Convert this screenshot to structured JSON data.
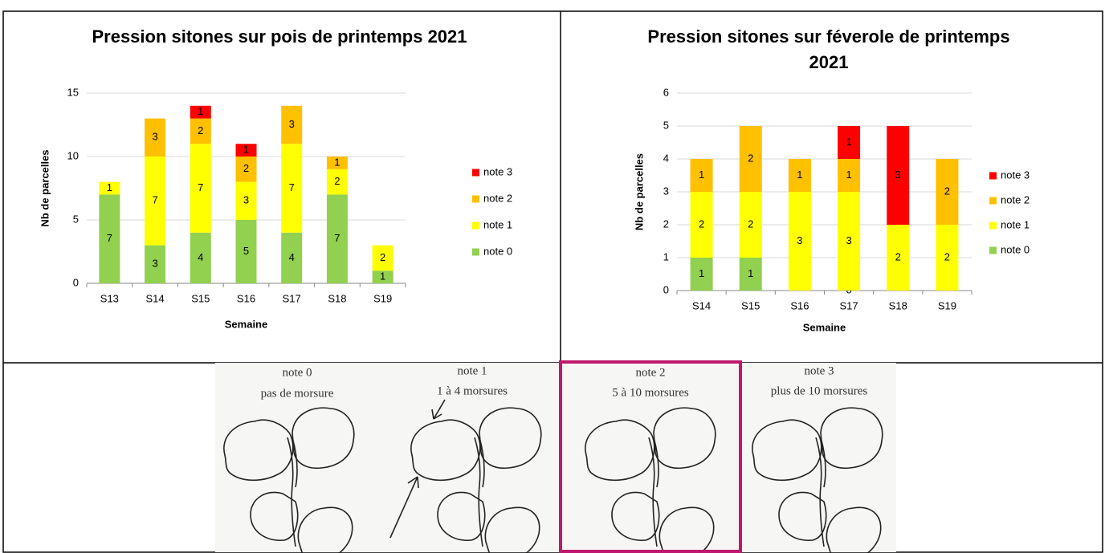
{
  "chart_data": [
    {
      "type": "bar",
      "stacked": true,
      "title": "Pression sitones sur pois de printemps 2021",
      "x_label": "Semaine",
      "y_label": "Nb de parcelles",
      "categories": [
        "S13",
        "S14",
        "S15",
        "S16",
        "S17",
        "S18",
        "S19"
      ],
      "series": [
        {
          "name": "note 0",
          "color": "#92d050",
          "values": [
            7,
            3,
            4,
            5,
            4,
            7,
            1
          ]
        },
        {
          "name": "note 1",
          "color": "#ffff00",
          "values": [
            1,
            7,
            7,
            3,
            7,
            2,
            2
          ]
        },
        {
          "name": "note 2",
          "color": "#ffc000",
          "values": [
            null,
            3,
            2,
            2,
            3,
            1,
            null
          ]
        },
        {
          "name": "note 3",
          "color": "#ff0000",
          "values": [
            null,
            null,
            1,
            1,
            null,
            null,
            null
          ]
        }
      ],
      "ylim": [
        0,
        15
      ],
      "yticks": [
        0,
        5,
        10,
        15
      ],
      "grid": true,
      "legend": "right"
    },
    {
      "type": "bar",
      "stacked": true,
      "title": "Pression sitones sur féverole de printemps 2021",
      "x_label": "Semaine",
      "y_label": "Nb de parcelles",
      "categories": [
        "S14",
        "S15",
        "S16",
        "S17",
        "S18",
        "S19"
      ],
      "series": [
        {
          "name": "note 0",
          "color": "#92d050",
          "values": [
            1,
            1,
            null,
            0,
            null,
            null
          ]
        },
        {
          "name": "note 1",
          "color": "#ffff00",
          "values": [
            2,
            2,
            3,
            3,
            2,
            2
          ]
        },
        {
          "name": "note 2",
          "color": "#ffc000",
          "values": [
            1,
            2,
            1,
            1,
            null,
            2
          ]
        },
        {
          "name": "note 3",
          "color": "#ff0000",
          "values": [
            null,
            null,
            null,
            1,
            3,
            null
          ]
        }
      ],
      "ylim": [
        0,
        6
      ],
      "yticks": [
        0,
        1,
        2,
        3,
        4,
        5,
        6
      ],
      "grid": true,
      "legend": "right"
    }
  ],
  "illustration": {
    "panels": [
      {
        "title": "note 0",
        "caption": "pas de morsure"
      },
      {
        "title": "note 1",
        "caption": "1 à 4 morsures"
      },
      {
        "title": "note 2",
        "caption": "5 à 10 morsures"
      },
      {
        "title": "note 3",
        "caption": "plus de 10 morsures"
      }
    ]
  }
}
